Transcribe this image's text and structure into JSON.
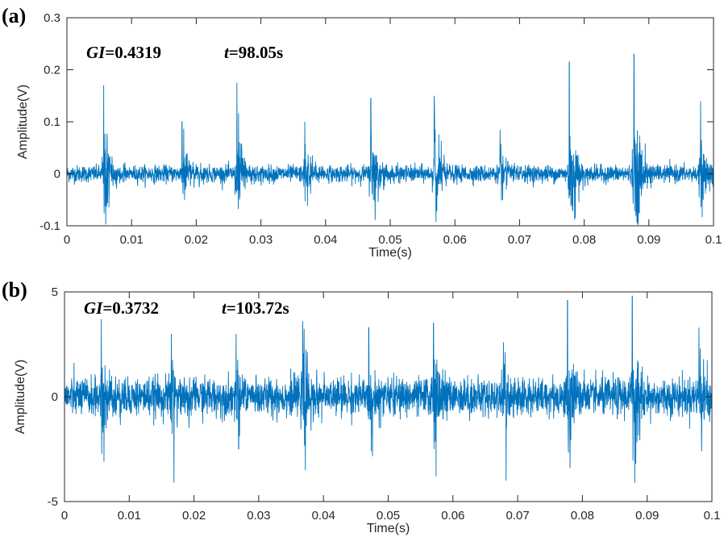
{
  "chart_data": [
    {
      "type": "line",
      "panel_label": "(a)",
      "annotation_gi_label": "GI",
      "annotation_gi_value": "=0.4319",
      "annotation_t_label": "t",
      "annotation_t_value": "=98.05s",
      "xlabel": "Time(s)",
      "ylabel": "Amplitude(V)",
      "xlim": [
        0,
        0.1
      ],
      "ylim": [
        -0.1,
        0.3
      ],
      "xticks": [
        "0",
        "0.01",
        "0.02",
        "0.03",
        "0.04",
        "0.05",
        "0.06",
        "0.07",
        "0.08",
        "0.09",
        "0.1"
      ],
      "yticks": [
        "-0.1",
        "0",
        "0.1",
        "0.2",
        "0.3"
      ],
      "ytick_values": [
        -0.1,
        0,
        0.1,
        0.2,
        0.3
      ],
      "grid": false,
      "color": "#0072BD",
      "impulse_peaks": [
        {
          "x": 0.0057,
          "y": 0.17,
          "min": -0.055
        },
        {
          "x": 0.0178,
          "y": 0.1,
          "min": -0.05
        },
        {
          "x": 0.0263,
          "y": 0.175,
          "min": -0.05
        },
        {
          "x": 0.0368,
          "y": 0.1,
          "min": -0.062
        },
        {
          "x": 0.047,
          "y": 0.145,
          "min": -0.05
        },
        {
          "x": 0.0568,
          "y": 0.15,
          "min": -0.072
        },
        {
          "x": 0.067,
          "y": 0.085,
          "min": -0.05
        },
        {
          "x": 0.0777,
          "y": 0.215,
          "min": -0.06
        },
        {
          "x": 0.0877,
          "y": 0.23,
          "min": -0.075
        },
        {
          "x": 0.098,
          "y": 0.14,
          "min": -0.05
        }
      ]
    },
    {
      "type": "line",
      "panel_label": "(b)",
      "annotation_gi_label": "GI",
      "annotation_gi_value": "=0.3732",
      "annotation_t_label": "t",
      "annotation_t_value": "=103.72s",
      "xlabel": "Time(s)",
      "ylabel": "Amplitude(V)",
      "xlim": [
        0,
        0.1
      ],
      "ylim": [
        -5,
        5
      ],
      "xticks": [
        "0",
        "0.01",
        "0.02",
        "0.03",
        "0.04",
        "0.05",
        "0.06",
        "0.07",
        "0.08",
        "0.09",
        "0.1"
      ],
      "yticks": [
        "-5",
        "0",
        "5"
      ],
      "ytick_values": [
        -5,
        0,
        5
      ],
      "grid": false,
      "color": "#0072BD",
      "impulse_peaks": [
        {
          "x": 0.0057,
          "y": 3.7,
          "min": -3.1
        },
        {
          "x": 0.0165,
          "y": 3.0,
          "min": -4.1
        },
        {
          "x": 0.0265,
          "y": 3.0,
          "min": -2.5
        },
        {
          "x": 0.0368,
          "y": 3.6,
          "min": -3.5
        },
        {
          "x": 0.047,
          "y": 3.3,
          "min": -2.6
        },
        {
          "x": 0.057,
          "y": 3.5,
          "min": -3.8
        },
        {
          "x": 0.0678,
          "y": 2.6,
          "min": -4.0
        },
        {
          "x": 0.0777,
          "y": 4.6,
          "min": -3.4
        },
        {
          "x": 0.0877,
          "y": 4.8,
          "min": -4.1
        },
        {
          "x": 0.098,
          "y": 3.3,
          "min": -2.6
        }
      ]
    }
  ]
}
